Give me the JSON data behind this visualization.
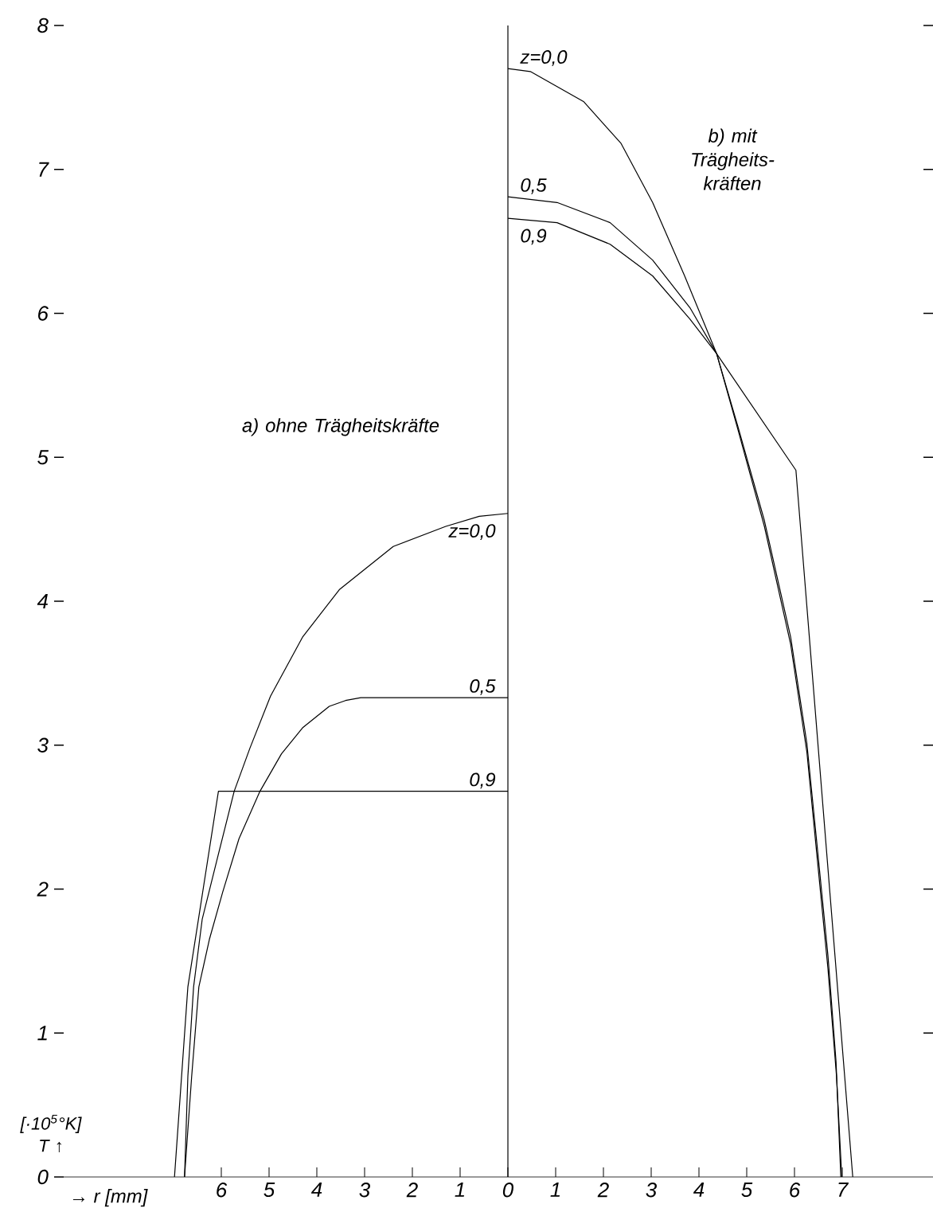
{
  "chart_data": [
    {
      "type": "line",
      "xlabel": "→ r [mm]",
      "ylabel": "[·10$^{5}$°K] T ↑",
      "annotations": [
        "a) ohne Trägheitskräfte"
      ],
      "xlim": [
        9.3,
        0
      ],
      "ylim": [
        0,
        8
      ],
      "xticks": [
        0,
        1,
        2,
        3,
        4,
        5,
        6
      ],
      "yticks": [
        0,
        1,
        2,
        3,
        4,
        5,
        6,
        7,
        8
      ],
      "series": [
        {
          "name": "z=0,0",
          "color": "#000000",
          "x": [
            0,
            0.6,
            1.3,
            2.4,
            3.53,
            4.3,
            4.97,
            5.4,
            5.73,
            6.07,
            6.4,
            6.58,
            6.7,
            6.77
          ],
          "values": [
            4.61,
            4.59,
            4.52,
            4.38,
            4.08,
            3.75,
            3.34,
            2.98,
            2.68,
            2.23,
            1.79,
            1.32,
            0.7,
            0
          ]
        },
        {
          "name": "0,5",
          "color": "#000000",
          "x": [
            0,
            3.08,
            3.4,
            3.74,
            4.3,
            4.74,
            5.19,
            5.63,
            5.97,
            6.25,
            6.47,
            6.62,
            6.77
          ],
          "values": [
            3.33,
            3.33,
            3.31,
            3.27,
            3.12,
            2.94,
            2.68,
            2.35,
            1.98,
            1.65,
            1.32,
            0.7,
            0
          ]
        },
        {
          "name": "0,9",
          "color": "#000000",
          "x": [
            0,
            6.06,
            6.7,
            6.98
          ],
          "values": [
            2.68,
            2.68,
            1.32,
            0
          ]
        }
      ]
    },
    {
      "type": "line",
      "annotations": [
        "b) mit Trägheits-kräften"
      ],
      "tick_labels": "x",
      "xlim": [
        0,
        8.9
      ],
      "ylim": [
        0,
        8
      ],
      "xticks": [
        1,
        2,
        3,
        4,
        5,
        6,
        7
      ],
      "yticks": [
        1,
        2,
        3,
        4,
        5,
        6,
        7,
        8
      ],
      "series": [
        {
          "name": "z=0,0",
          "color": "#000000",
          "x": [
            0,
            0.47,
            1.59,
            2.37,
            3.03,
            3.7,
            4.37,
            4.81,
            5.37,
            5.92,
            6.26,
            6.48,
            6.7,
            6.87,
            6.97
          ],
          "values": [
            7.7,
            7.68,
            7.47,
            7.18,
            6.77,
            6.26,
            5.72,
            5.22,
            4.56,
            3.75,
            3.01,
            2.28,
            1.54,
            0.8,
            0
          ]
        },
        {
          "name": "0,5",
          "color": "#000000",
          "x": [
            0,
            1.03,
            2.14,
            3.03,
            3.81,
            4.37,
            4.81,
            5.37,
            5.92,
            6.26,
            6.48,
            6.7,
            6.88,
            6.99
          ],
          "values": [
            6.81,
            6.77,
            6.63,
            6.37,
            6.04,
            5.72,
            5.2,
            4.52,
            3.7,
            2.95,
            2.2,
            1.45,
            0.7,
            0
          ]
        },
        {
          "name": "0,9",
          "color": "#000000",
          "x": [
            0,
            1.03,
            2.14,
            3.03,
            3.81,
            4.37,
            6.03,
            7.22
          ],
          "values": [
            6.66,
            6.63,
            6.48,
            6.26,
            5.96,
            5.72,
            4.91,
            0
          ]
        }
      ]
    }
  ]
}
